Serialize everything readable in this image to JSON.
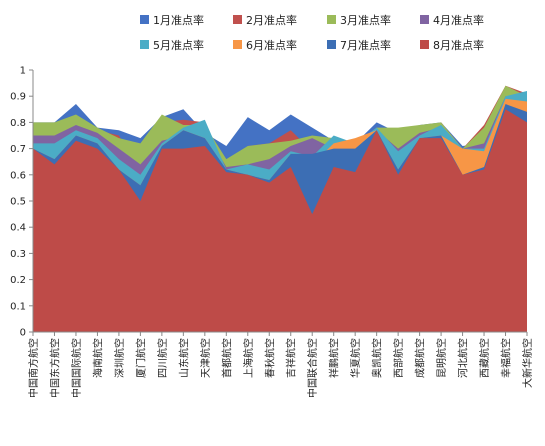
{
  "chart_data": {
    "type": "area",
    "title": "",
    "xlabel": "",
    "ylabel": "",
    "ylim": [
      0,
      1
    ],
    "yticks": [
      "0",
      "0.1",
      "0.2",
      "0.3",
      "0.4",
      "0.5",
      "0.6",
      "0.7",
      "0.8",
      "0.9",
      "1"
    ],
    "grid": false,
    "legend_position": "top",
    "categories": [
      "中国南方航空",
      "中国东方航空",
      "中国国际航空",
      "海南航空",
      "深圳航空",
      "厦门航空",
      "四川航空",
      "山东航空",
      "天津航空",
      "首都航空",
      "上海航空",
      "春秋航空",
      "吉祥航空",
      "中国联合航空",
      "祥鹏航空",
      "华夏航空",
      "奥凯航空",
      "西部航空",
      "成都航空",
      "昆明航空",
      "河北航空",
      "西藏航空",
      "幸福航空",
      "大新华航空"
    ],
    "series": [
      {
        "name": "1月准点率",
        "color": "#4472C4",
        "values": [
          0.8,
          0.8,
          0.87,
          0.78,
          0.77,
          0.74,
          0.82,
          0.85,
          0.76,
          0.71,
          0.82,
          0.77,
          0.83,
          0.78,
          0.73,
          0.72,
          0.8,
          0.76,
          0.79,
          0.8,
          0.71,
          0.72,
          0.85,
          0.92
        ]
      },
      {
        "name": "2月准点率",
        "color": "#C0504D",
        "values": [
          0.73,
          0.76,
          0.8,
          0.77,
          0.75,
          0.61,
          0.8,
          0.81,
          0.8,
          0.63,
          0.71,
          0.72,
          0.77,
          0.69,
          0.72,
          0.7,
          0.78,
          0.75,
          0.78,
          0.8,
          0.7,
          0.79,
          0.94,
          0.91
        ]
      },
      {
        "name": "3月准点率",
        "color": "#9BBB59",
        "values": [
          0.8,
          0.8,
          0.83,
          0.78,
          0.74,
          0.72,
          0.83,
          0.79,
          0.79,
          0.66,
          0.71,
          0.72,
          0.73,
          0.75,
          0.74,
          0.71,
          0.78,
          0.78,
          0.79,
          0.8,
          0.7,
          0.78,
          0.94,
          0.9
        ]
      },
      {
        "name": "4月准点率",
        "color": "#8064A2",
        "values": [
          0.75,
          0.75,
          0.79,
          0.76,
          0.7,
          0.64,
          0.73,
          0.75,
          0.77,
          0.63,
          0.64,
          0.66,
          0.71,
          0.74,
          0.7,
          0.69,
          0.77,
          0.7,
          0.76,
          0.78,
          0.7,
          0.72,
          0.9,
          0.89
        ]
      },
      {
        "name": "5月准点率",
        "color": "#4BACC6",
        "values": [
          0.72,
          0.72,
          0.77,
          0.74,
          0.66,
          0.6,
          0.72,
          0.78,
          0.81,
          0.62,
          0.64,
          0.62,
          0.69,
          0.67,
          0.75,
          0.72,
          0.78,
          0.69,
          0.75,
          0.79,
          0.7,
          0.7,
          0.9,
          0.92
        ]
      },
      {
        "name": "6月准点率",
        "color": "#F79646",
        "values": [
          0.7,
          0.66,
          0.75,
          0.72,
          0.62,
          0.56,
          0.71,
          0.77,
          0.74,
          0.62,
          0.6,
          0.58,
          0.68,
          0.64,
          0.72,
          0.74,
          0.77,
          0.62,
          0.74,
          0.75,
          0.7,
          0.69,
          0.89,
          0.88
        ]
      },
      {
        "name": "7月准点率",
        "color": "#3C6EB4",
        "values": [
          0.7,
          0.66,
          0.75,
          0.72,
          0.62,
          0.56,
          0.71,
          0.77,
          0.74,
          0.62,
          0.6,
          0.58,
          0.68,
          0.68,
          0.7,
          0.7,
          0.77,
          0.62,
          0.74,
          0.75,
          0.6,
          0.63,
          0.87,
          0.84
        ]
      },
      {
        "name": "8月准点率",
        "color": "#BE4B48",
        "values": [
          0.7,
          0.64,
          0.73,
          0.7,
          0.62,
          0.5,
          0.7,
          0.7,
          0.71,
          0.61,
          0.6,
          0.57,
          0.63,
          0.45,
          0.63,
          0.61,
          0.77,
          0.6,
          0.74,
          0.74,
          0.6,
          0.62,
          0.85,
          0.8
        ]
      }
    ]
  }
}
